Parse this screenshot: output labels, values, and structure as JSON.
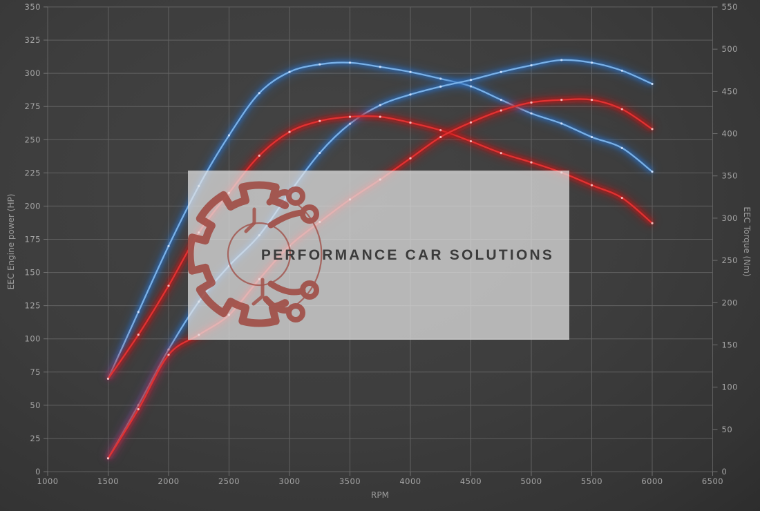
{
  "watermark": {
    "text": "PERFORMANCE CAR SOLUTIONS"
  },
  "colors": {
    "background": "#3d3d3d",
    "grid": "#818181",
    "tick_text": "#a6a6a6",
    "axis_title_text": "#9c9c9c",
    "blue_core": "#79b1e8",
    "blue_glow": "#2b6ab8",
    "blue_dot": "#ddeaff",
    "red_core": "#e23232",
    "red_glow": "#c01414",
    "red_dot": "#ffd9d9",
    "logo_red": "#9e423a",
    "watermark_text": "#3b3b3b"
  },
  "chart_data": {
    "type": "line",
    "title": "",
    "xlabel": "RPM",
    "x_range": [
      1000,
      6500
    ],
    "x_ticks": [
      1000,
      1500,
      2000,
      2500,
      3000,
      3500,
      4000,
      4500,
      5000,
      5500,
      6000,
      6500
    ],
    "left_axis": {
      "label": "EEC Engine power (HP)",
      "min": 0,
      "max": 350,
      "ticks": [
        0,
        25,
        50,
        75,
        100,
        125,
        150,
        175,
        200,
        225,
        250,
        275,
        300,
        325,
        350
      ]
    },
    "right_axis": {
      "label": "EEC Torque (Nm)",
      "min": 0,
      "max": 550,
      "ticks": [
        0,
        50,
        100,
        150,
        200,
        250,
        300,
        350,
        400,
        450,
        500,
        550
      ]
    },
    "grid": "both-from-left-axis",
    "legend": "none",
    "rpm": [
      1500,
      1750,
      2000,
      2250,
      2500,
      2750,
      3000,
      3250,
      3500,
      3750,
      4000,
      4250,
      4500,
      4750,
      5000,
      5250,
      5500,
      5750,
      6000
    ],
    "series": [
      {
        "name": "blue_torque_nm",
        "color": "blue",
        "axis": "right",
        "unit": "Nm",
        "values": [
          110,
          189,
          267,
          338,
          398,
          448,
          473,
          482,
          484,
          479,
          473,
          465,
          456,
          440,
          424,
          412,
          396,
          383,
          355
        ]
      },
      {
        "name": "blue_power_hp",
        "color": "blue",
        "axis": "left",
        "unit": "HP",
        "values": [
          10,
          50,
          92,
          128,
          155,
          178,
          210,
          240,
          262,
          276,
          284,
          290,
          295,
          301,
          306,
          310,
          308,
          302,
          292
        ]
      },
      {
        "name": "red_torque_nm",
        "color": "red",
        "axis": "right",
        "unit": "Nm",
        "values": [
          110,
          162,
          220,
          283,
          330,
          374,
          402,
          415,
          420,
          420,
          413,
          404,
          391,
          377,
          366,
          354,
          339,
          324,
          294
        ]
      },
      {
        "name": "red_power_hp",
        "color": "red",
        "axis": "left",
        "unit": "HP",
        "values": [
          10,
          47,
          88,
          103,
          118,
          145,
          170,
          188,
          205,
          220,
          236,
          252,
          263,
          272,
          278,
          280,
          280,
          273,
          258
        ]
      }
    ]
  }
}
